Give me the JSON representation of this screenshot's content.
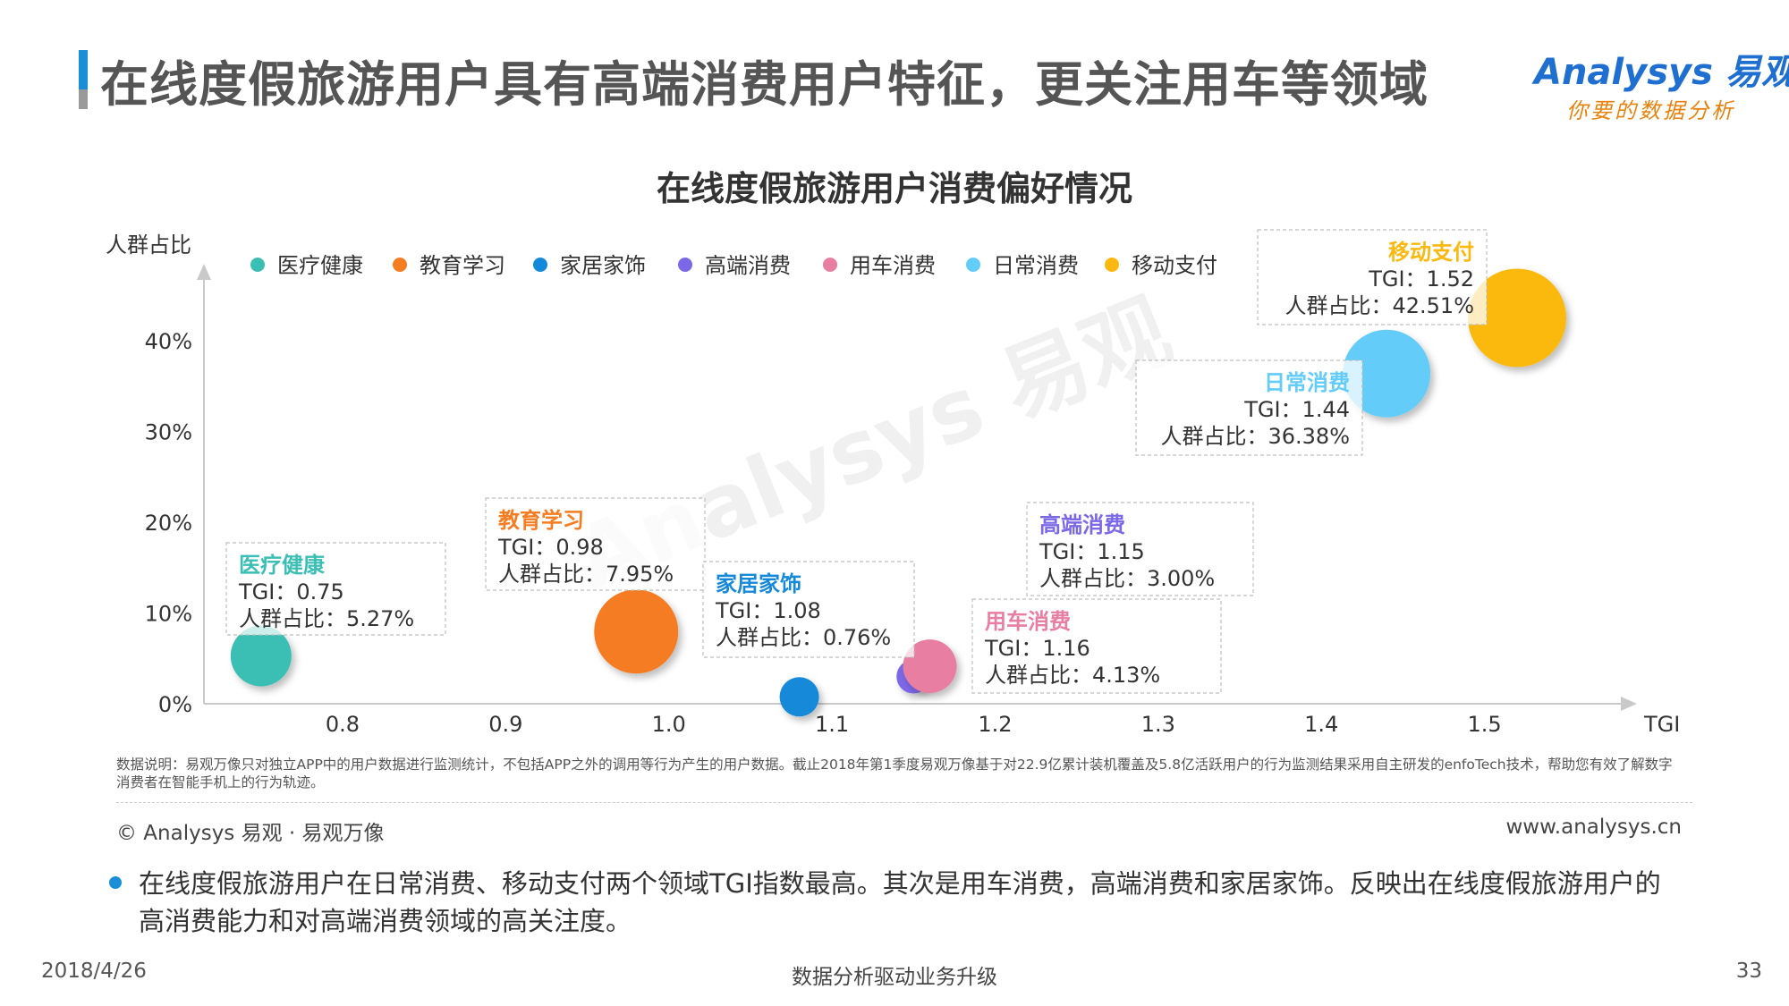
{
  "header": {
    "title": "在线度假旅游用户具有高端消费用户特征，更关注用车等领域",
    "logo_text": "Analysys 易观",
    "logo_sub": "你要的数据分析"
  },
  "watermark": "Analysys 易观",
  "chart_data": {
    "type": "scatter",
    "title": "在线度假旅游用户消费偏好情况",
    "xlabel": "TGI",
    "ylabel": "人群占比",
    "xlim": [
      0.7,
      1.6
    ],
    "ylim": [
      0,
      45
    ],
    "x_ticks": [
      "0.8",
      "0.9",
      "1.0",
      "1.1",
      "1.2",
      "1.3",
      "1.4",
      "1.5"
    ],
    "y_ticks": [
      "0%",
      "10%",
      "20%",
      "30%",
      "40%"
    ],
    "legend_position": "top",
    "tgi_prefix": "TGI：",
    "share_prefix": "人群占比：",
    "series": [
      {
        "name": "医疗健康",
        "color": "#3bbfb4",
        "tgi": 0.75,
        "tgi_label": "0.75",
        "share": 5.27,
        "share_label": "5.27%"
      },
      {
        "name": "教育学习",
        "color": "#f57c20",
        "tgi": 0.98,
        "tgi_label": "0.98",
        "share": 7.95,
        "share_label": "7.95%"
      },
      {
        "name": "家居家饰",
        "color": "#1589d9",
        "tgi": 1.08,
        "tgi_label": "1.08",
        "share": 0.76,
        "share_label": "0.76%"
      },
      {
        "name": "高端消费",
        "color": "#7b68e6",
        "tgi": 1.15,
        "tgi_label": "1.15",
        "share": 3.0,
        "share_label": "3.00%"
      },
      {
        "name": "用车消费",
        "color": "#e87ea1",
        "tgi": 1.16,
        "tgi_label": "1.16",
        "share": 4.13,
        "share_label": "4.13%"
      },
      {
        "name": "日常消费",
        "color": "#63ccf9",
        "tgi": 1.44,
        "tgi_label": "1.44",
        "share": 36.38,
        "share_label": "36.38%"
      },
      {
        "name": "移动支付",
        "color": "#fbb80f",
        "tgi": 1.52,
        "tgi_label": "1.52",
        "share": 42.51,
        "share_label": "42.51%"
      }
    ]
  },
  "note": "数据说明：易观万像只对独立APP中的用户数据进行监测统计，不包括APP之外的调用等行为产生的用户数据。截止2018年第1季度易观万像基于对22.9亿累计装机覆盖及5.8亿活跃用户的行为监测结果采用自主研发的enfoTech技术，帮助您有效了解数字消费者在智能手机上的行为轨迹。",
  "copyright": "© Analysys 易观 · 易观万像",
  "website": "www.analysys.cn",
  "summary": "在线度假旅游用户在日常消费、移动支付两个领域TGI指数最高。其次是用车消费，高端消费和家居家饰。反映出在线度假旅游用户的高消费能力和对高端消费领域的高关注度。",
  "footer": {
    "date": "2018/4/26",
    "center": "数据分析驱动业务升级",
    "page": "33"
  }
}
